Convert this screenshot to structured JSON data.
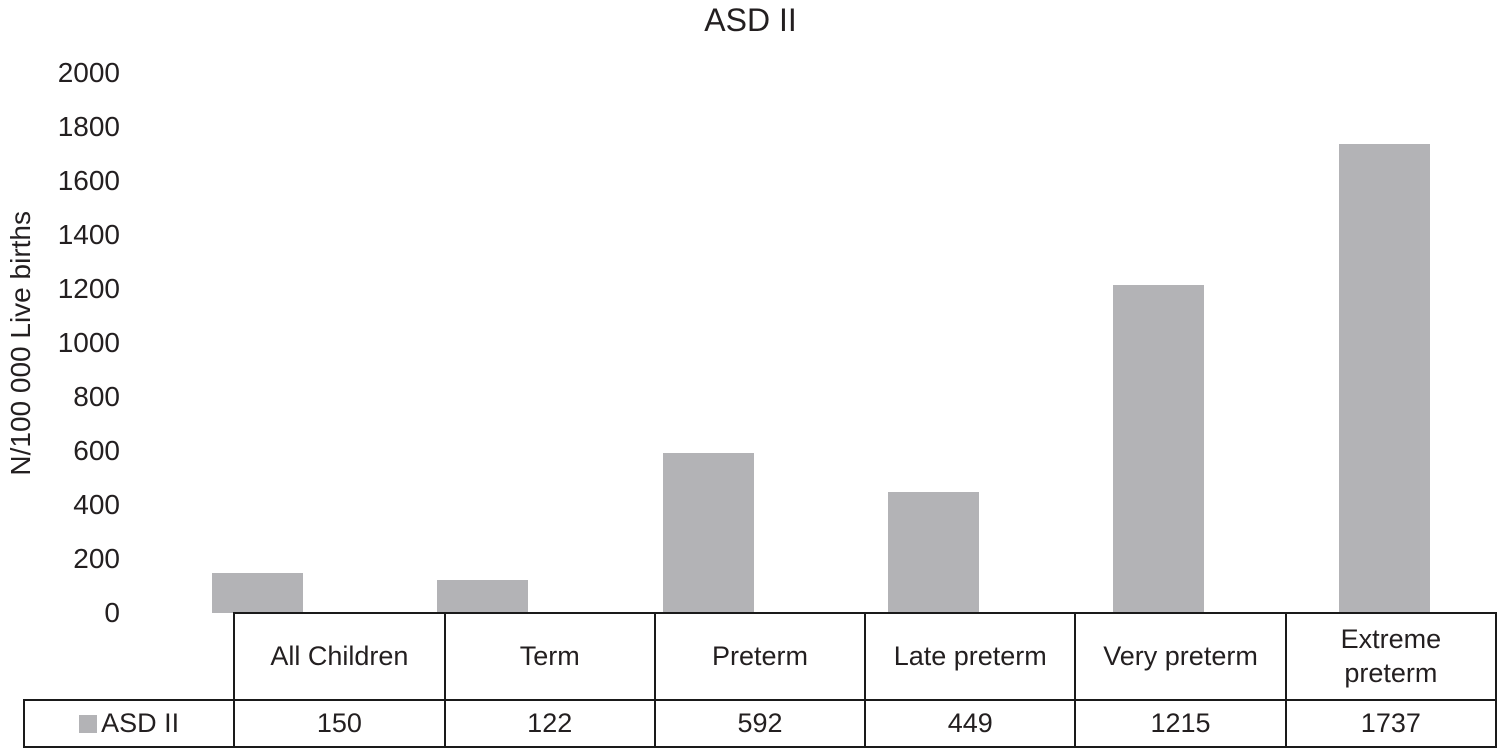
{
  "chart_data": {
    "type": "bar",
    "title": "ASD II",
    "categories": [
      "All Children",
      "Term",
      "Preterm",
      "Late preterm",
      "Very preterm",
      "Extreme preterm"
    ],
    "series": [
      {
        "name": "ASD II",
        "values": [
          150,
          122,
          592,
          449,
          1215,
          1737
        ]
      }
    ],
    "xlabel": "",
    "ylabel": "N/100 000 Live births",
    "ylim": [
      0,
      2000
    ],
    "yticks": [
      0,
      200,
      400,
      600,
      800,
      1000,
      1200,
      1400,
      1600,
      1800,
      2000
    ],
    "grid": false,
    "legend_position": "bottom-table-row",
    "bar_color": "#b3b3b6"
  },
  "legend": {
    "label": "ASD II",
    "swatch_color": "#b3b3b6"
  }
}
